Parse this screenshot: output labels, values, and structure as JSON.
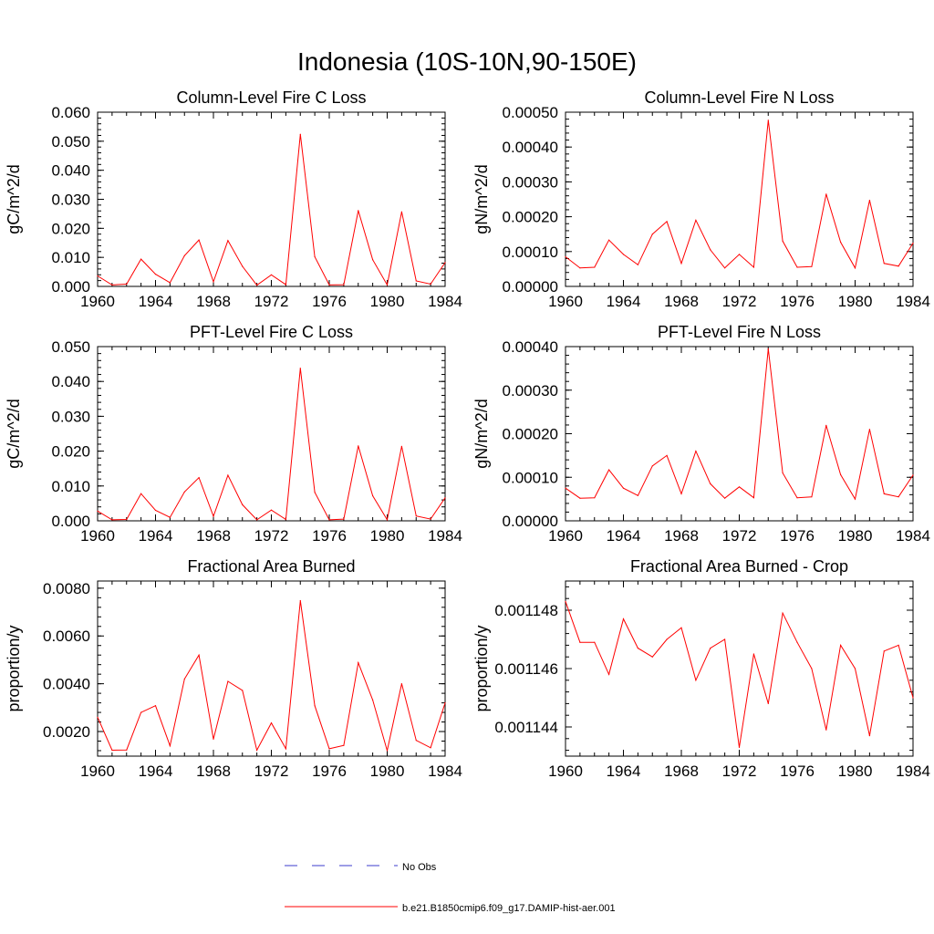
{
  "figure": {
    "title": "Indonesia (10S-10N,90-150E)"
  },
  "legend": [
    {
      "label": "No Obs",
      "color": "#3b3bcc",
      "style": "dashed"
    },
    {
      "label": "b.e21.B1850cmip6.f09_g17.DAMIP-hist-aer.001",
      "color": "#ff0000",
      "style": "solid"
    }
  ],
  "chart_data": [
    {
      "type": "line",
      "title": "Column-Level Fire C Loss",
      "ylabel": "gC/m^2/d",
      "xlim": [
        1960,
        1984
      ],
      "ylim": [
        0,
        0.06
      ],
      "xticks": [
        "1960",
        "1964",
        "1968",
        "1972",
        "1976",
        "1980",
        "1984"
      ],
      "yticks": [
        "0.000",
        "0.010",
        "0.020",
        "0.030",
        "0.040",
        "0.050",
        "0.060"
      ],
      "x": [
        1960,
        1961,
        1962,
        1963,
        1964,
        1965,
        1966,
        1967,
        1968,
        1969,
        1970,
        1971,
        1972,
        1973,
        1974,
        1975,
        1976,
        1977,
        1978,
        1979,
        1980,
        1981,
        1982,
        1983,
        1984
      ],
      "series": [
        {
          "name": "b.e21.B1850cmip6.f09_g17.DAMIP-hist-aer.001",
          "color": "#ff0000",
          "values": [
            0.0036,
            0.0005,
            0.0008,
            0.0094,
            0.0042,
            0.0013,
            0.0106,
            0.016,
            0.0016,
            0.0158,
            0.0069,
            0.0004,
            0.004,
            0.0006,
            0.0524,
            0.0102,
            0.0005,
            0.0006,
            0.0261,
            0.0092,
            0.0005,
            0.0257,
            0.0019,
            0.0008,
            0.0082
          ]
        }
      ]
    },
    {
      "type": "line",
      "title": "Column-Level Fire N Loss",
      "ylabel": "gN/m^2/d",
      "xlim": [
        1960,
        1984
      ],
      "ylim": [
        0,
        0.0005
      ],
      "xticks": [
        "1960",
        "1964",
        "1968",
        "1972",
        "1976",
        "1980",
        "1984"
      ],
      "yticks": [
        "0.00000",
        "0.00010",
        "0.00020",
        "0.00030",
        "0.00040",
        "0.00050"
      ],
      "x": [
        1960,
        1961,
        1962,
        1963,
        1964,
        1965,
        1966,
        1967,
        1968,
        1969,
        1970,
        1971,
        1972,
        1973,
        1974,
        1975,
        1976,
        1977,
        1978,
        1979,
        1980,
        1981,
        1982,
        1983,
        1984
      ],
      "series": [
        {
          "name": "b.e21.B1850cmip6.f09_g17.DAMIP-hist-aer.001",
          "color": "#ff0000",
          "values": [
            8.5e-05,
            5.3e-05,
            5.5e-05,
            0.000133,
            9.2e-05,
            6.2e-05,
            0.00015,
            0.000186,
            6.6e-05,
            0.00019,
            0.000105,
            5.3e-05,
            9.2e-05,
            5.5e-05,
            0.000477,
            0.00013,
            5.5e-05,
            5.7e-05,
            0.000265,
            0.000127,
            5.3e-05,
            0.000247,
            6.6e-05,
            5.8e-05,
            0.000124
          ]
        }
      ]
    },
    {
      "type": "line",
      "title": "PFT-Level Fire C Loss",
      "ylabel": "gC/m^2/d",
      "xlim": [
        1960,
        1984
      ],
      "ylim": [
        0,
        0.05
      ],
      "xticks": [
        "1960",
        "1964",
        "1968",
        "1972",
        "1976",
        "1980",
        "1984"
      ],
      "yticks": [
        "0.000",
        "0.010",
        "0.020",
        "0.030",
        "0.040",
        "0.050"
      ],
      "x": [
        1960,
        1961,
        1962,
        1963,
        1964,
        1965,
        1966,
        1967,
        1968,
        1969,
        1970,
        1971,
        1972,
        1973,
        1974,
        1975,
        1976,
        1977,
        1978,
        1979,
        1980,
        1981,
        1982,
        1983,
        1984
      ],
      "series": [
        {
          "name": "b.e21.B1850cmip6.f09_g17.DAMIP-hist-aer.001",
          "color": "#ff0000",
          "values": [
            0.0028,
            0.0003,
            0.0004,
            0.0078,
            0.003,
            0.001,
            0.0083,
            0.0124,
            0.0013,
            0.0131,
            0.0046,
            0.0003,
            0.0031,
            0.0004,
            0.0438,
            0.0082,
            0.0003,
            0.0005,
            0.0215,
            0.0072,
            0.0003,
            0.0214,
            0.0014,
            0.0005,
            0.0066
          ]
        }
      ]
    },
    {
      "type": "line",
      "title": "PFT-Level Fire N Loss",
      "ylabel": "gN/m^2/d",
      "xlim": [
        1960,
        1984
      ],
      "ylim": [
        0,
        0.0004
      ],
      "xticks": [
        "1960",
        "1964",
        "1968",
        "1972",
        "1976",
        "1980",
        "1984"
      ],
      "yticks": [
        "0.00000",
        "0.00010",
        "0.00020",
        "0.00030",
        "0.00040"
      ],
      "x": [
        1960,
        1961,
        1962,
        1963,
        1964,
        1965,
        1966,
        1967,
        1968,
        1969,
        1970,
        1971,
        1972,
        1973,
        1974,
        1975,
        1976,
        1977,
        1978,
        1979,
        1980,
        1981,
        1982,
        1983,
        1984
      ],
      "series": [
        {
          "name": "b.e21.B1850cmip6.f09_g17.DAMIP-hist-aer.001",
          "color": "#ff0000",
          "values": [
            7.5e-05,
            5.2e-05,
            5.3e-05,
            0.000117,
            7.5e-05,
            5.8e-05,
            0.000126,
            0.00015,
            6.2e-05,
            0.00016,
            8.5e-05,
            5.2e-05,
            7.8e-05,
            5.3e-05,
            0.000395,
            0.00011,
            5.3e-05,
            5.5e-05,
            0.000219,
            0.000106,
            5e-05,
            0.00021,
            6.2e-05,
            5.5e-05,
            0.000105
          ]
        }
      ]
    },
    {
      "type": "line",
      "title": "Fractional Area Burned",
      "ylabel": "proportion/y",
      "xlim": [
        1960,
        1984
      ],
      "ylim": [
        0.00097,
        0.0083
      ],
      "xticks": [
        "1960",
        "1964",
        "1968",
        "1972",
        "1976",
        "1980",
        "1984"
      ],
      "yticks": [
        "0.0020",
        "0.0040",
        "0.0060",
        "0.0080"
      ],
      "x": [
        1960,
        1961,
        1962,
        1963,
        1964,
        1965,
        1966,
        1967,
        1968,
        1969,
        1970,
        1971,
        1972,
        1973,
        1974,
        1975,
        1976,
        1977,
        1978,
        1979,
        1980,
        1981,
        1982,
        1983,
        1984
      ],
      "series": [
        {
          "name": "b.e21.B1850cmip6.f09_g17.DAMIP-hist-aer.001",
          "color": "#ff0000",
          "values": [
            0.0026,
            0.00122,
            0.00123,
            0.0028,
            0.00308,
            0.0014,
            0.0042,
            0.0052,
            0.00168,
            0.0041,
            0.00372,
            0.00122,
            0.00236,
            0.00128,
            0.00748,
            0.00308,
            0.00128,
            0.00142,
            0.00488,
            0.00332,
            0.0012,
            0.004,
            0.00163,
            0.00132,
            0.0032
          ]
        }
      ]
    },
    {
      "type": "line",
      "title": "Fractional Area Burned - Crop",
      "ylabel": "proportion/y",
      "xlim": [
        1960,
        1984
      ],
      "ylim": [
        0.001143,
        0.001149
      ],
      "xticks": [
        "1960",
        "1964",
        "1968",
        "1972",
        "1976",
        "1980",
        "1984"
      ],
      "yticks": [
        "0.001144",
        "0.001146",
        "0.001148"
      ],
      "x": [
        1960,
        1961,
        1962,
        1963,
        1964,
        1965,
        1966,
        1967,
        1968,
        1969,
        1970,
        1971,
        1972,
        1973,
        1974,
        1975,
        1976,
        1977,
        1978,
        1979,
        1980,
        1981,
        1982,
        1983,
        1984
      ],
      "series": [
        {
          "name": "b.e21.B1850cmip6.f09_g17.DAMIP-hist-aer.001",
          "color": "#ff0000",
          "values": [
            0.0011483,
            0.0011469,
            0.0011469,
            0.0011458,
            0.0011477,
            0.0011467,
            0.0011464,
            0.001147,
            0.0011474,
            0.0011456,
            0.0011467,
            0.001147,
            0.0011433,
            0.0011465,
            0.0011448,
            0.0011479,
            0.0011469,
            0.001146,
            0.0011439,
            0.0011468,
            0.001146,
            0.0011437,
            0.0011466,
            0.0011468,
            0.001145
          ]
        }
      ]
    }
  ]
}
